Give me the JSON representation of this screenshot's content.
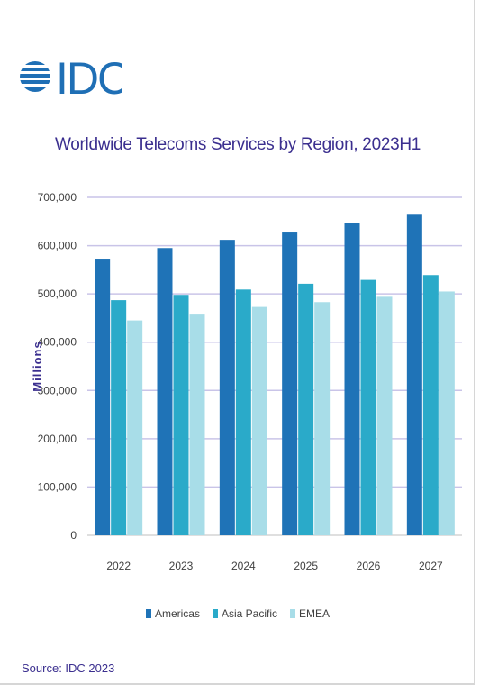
{
  "logo": {
    "text": "IDC"
  },
  "colors": {
    "americas": "#1f73b7",
    "asia_pacific": "#2aaac9",
    "emea": "#a8dde8",
    "grid": "#c9c4e8",
    "title": "#3b2f8f"
  },
  "chart_data": {
    "type": "bar",
    "title": "Worldwide Telecoms Services by Region, 2023H1",
    "xlabel": "",
    "ylabel": "Millions",
    "ylim": [
      0,
      700000
    ],
    "yticks": [
      0,
      100000,
      200000,
      300000,
      400000,
      500000,
      600000,
      700000
    ],
    "ytick_labels": [
      "0",
      "100,000",
      "200,000",
      "300,000",
      "400,000",
      "500,000",
      "600,000",
      "700,000"
    ],
    "categories": [
      "2022",
      "2023",
      "2024",
      "2025",
      "2026",
      "2027"
    ],
    "series": [
      {
        "name": "Americas",
        "color": "#1f73b7",
        "values": [
          573000,
          595000,
          612000,
          629000,
          647000,
          664000
        ]
      },
      {
        "name": "Asia Pacific",
        "color": "#2aaac9",
        "values": [
          487000,
          498000,
          509000,
          521000,
          529000,
          539000
        ]
      },
      {
        "name": "EMEA",
        "color": "#a8dde8",
        "values": [
          445000,
          459000,
          473000,
          483000,
          494000,
          505000
        ]
      }
    ],
    "grid": true,
    "legend": "bottom"
  },
  "source": "Source: IDC 2023"
}
